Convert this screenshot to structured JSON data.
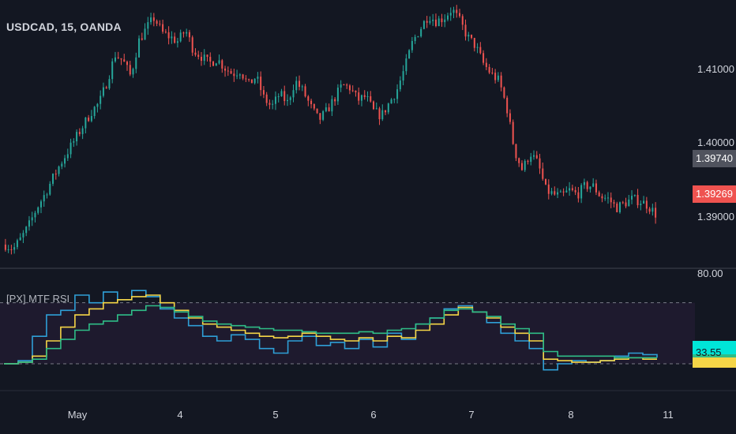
{
  "header": {
    "symbol_title": "USDCAD, 15, OANDA"
  },
  "indicator": {
    "title": "[PX] MTF RSI"
  },
  "price_axis": {
    "labels": [
      "1.41000",
      "1.40000",
      "1.39000"
    ],
    "marker_label": "1.39740",
    "last_price": "1.39269"
  },
  "rsi_axis": {
    "top_label": "80.00",
    "rsi_tag": "33.55"
  },
  "time_axis": {
    "labels": [
      "May",
      "4",
      "5",
      "6",
      "7",
      "8",
      "11"
    ]
  },
  "colors": {
    "background": "#131722",
    "up_candle": "#26a69a",
    "down_candle": "#ef5350",
    "rsi_blue": "#2f9fd6",
    "rsi_yellow": "#f5d547",
    "rsi_green": "#2fbd87",
    "band_fill": "#1e1a2e",
    "tag_cyan": "#00e5d8",
    "tag_yellow": "#ffff00",
    "marker_bg": "#50535e"
  },
  "chart_data": {
    "type": "candlestick",
    "price_ylim": [
      1.3875,
      1.4165
    ],
    "price_series": [
      1.3893,
      1.3888,
      1.39,
      1.3915,
      1.3935,
      1.395,
      1.3968,
      1.3985,
      1.4,
      1.4015,
      1.403,
      1.4045,
      1.4055,
      1.408,
      1.411,
      1.4103,
      1.4085,
      1.4125,
      1.414,
      1.4152,
      1.4135,
      1.413,
      1.4125,
      1.4138,
      1.4115,
      1.4108,
      1.41,
      1.4105,
      1.4095,
      1.4088,
      1.4092,
      1.4075,
      1.4085,
      1.406,
      1.405,
      1.4065,
      1.4055,
      1.408,
      1.4068,
      1.405,
      1.4035,
      1.4045,
      1.406,
      1.4075,
      1.4072,
      1.4058,
      1.4062,
      1.4045,
      1.404,
      1.4055,
      1.407,
      1.4095,
      1.4125,
      1.414,
      1.4155,
      1.4148,
      1.4152,
      1.4162,
      1.4148,
      1.413,
      1.412,
      1.41,
      1.4088,
      1.408,
      1.405,
      1.4,
      1.3978,
      1.3998,
      1.3985,
      1.3955,
      1.395,
      1.3948,
      1.3955,
      1.395,
      1.396,
      1.396,
      1.3948,
      1.3945,
      1.3935,
      1.394,
      1.3945,
      1.3943,
      1.3938,
      1.3928
    ],
    "rsi_ylim": [
      15,
      90
    ],
    "rsi_levels": [
      70,
      30
    ],
    "rsi_series": [
      {
        "values": [
          30,
          32,
          48,
          62,
          65,
          75,
          70,
          77,
          72,
          78,
          74,
          66,
          60,
          55,
          48,
          45,
          49,
          46,
          40,
          37,
          45,
          48,
          42,
          44,
          40,
          46,
          41,
          50,
          46,
          56,
          60,
          66,
          68,
          64,
          57,
          50,
          45,
          40,
          26,
          30,
          32,
          31,
          32,
          35,
          37,
          36,
          34
        ]
      },
      {
        "values": [
          30,
          31,
          35,
          45,
          54,
          62,
          66,
          70,
          72,
          74,
          75,
          70,
          65,
          60,
          56,
          54,
          52,
          50,
          48,
          47,
          48,
          50,
          48,
          46,
          45,
          47,
          45,
          48,
          47,
          52,
          56,
          62,
          67,
          64,
          60,
          54,
          50,
          45,
          33,
          32,
          31,
          31,
          32,
          33,
          34,
          33,
          33
        ]
      },
      {
        "values": [
          30,
          31,
          33,
          40,
          46,
          52,
          56,
          58,
          62,
          65,
          68,
          67,
          64,
          61,
          58,
          56,
          55,
          54,
          53,
          52,
          52,
          51,
          50,
          50,
          50,
          51,
          50,
          52,
          53,
          56,
          60,
          65,
          66,
          64,
          61,
          56,
          53,
          50,
          38,
          35,
          35,
          35,
          35,
          34,
          34,
          34,
          34
        ]
      }
    ]
  }
}
